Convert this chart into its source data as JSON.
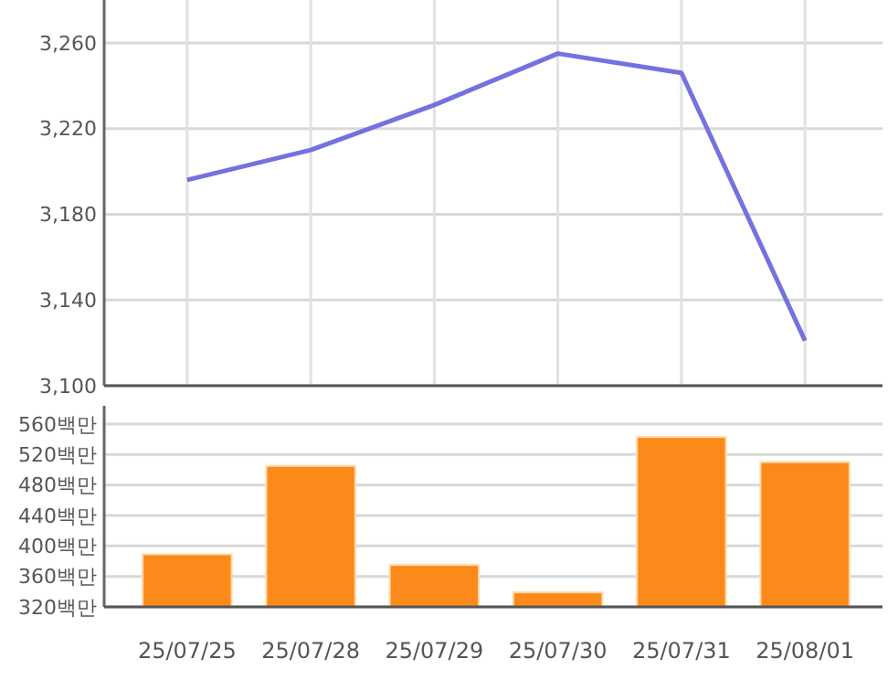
{
  "chart_data": [
    {
      "type": "line",
      "categories": [
        null,
        null,
        null,
        null,
        null,
        null
      ],
      "series": [
        {
          "color": "#7471e0",
          "values": [
            3196,
            3210,
            3231,
            3255,
            3246,
            3121
          ]
        }
      ],
      "ylim": [
        3100,
        3280
      ],
      "yticks": [
        {
          "value": 3100,
          "label": "3,100"
        },
        {
          "value": 3140,
          "label": "3,140"
        },
        {
          "value": 3180,
          "label": "3,180"
        },
        {
          "value": 3220,
          "label": "3,220"
        },
        {
          "value": 3260,
          "label": "3,260"
        }
      ],
      "grid": true,
      "tick_labels": "y",
      "marker": "none"
    },
    {
      "type": "bar",
      "categories": [
        "25/07/25",
        "25/07/28",
        "25/07/29",
        "25/07/30",
        "25/07/31",
        "25/08/01"
      ],
      "series": [
        {
          "color": "#fb8a1a",
          "values": [
            389,
            505,
            375,
            339,
            543,
            510
          ]
        }
      ],
      "ylim": [
        320,
        584
      ],
      "yticks": [
        {
          "value": 320,
          "label": "320백만"
        },
        {
          "value": 360,
          "label": "360백만"
        },
        {
          "value": 400,
          "label": "400백만"
        },
        {
          "value": 440,
          "label": "440백만"
        },
        {
          "value": 480,
          "label": "480백만"
        },
        {
          "value": 520,
          "label": "520백만"
        },
        {
          "value": 560,
          "label": "560백만"
        }
      ],
      "grid": "y"
    }
  ]
}
